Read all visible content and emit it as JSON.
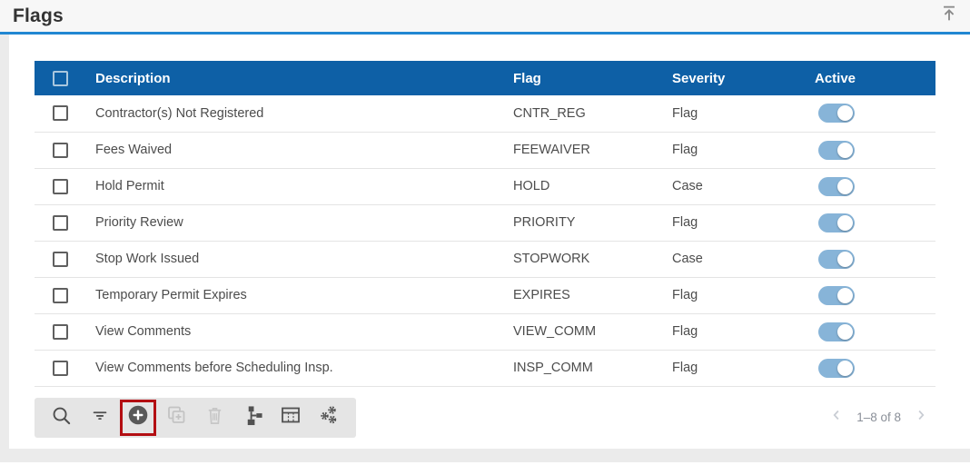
{
  "page": {
    "title": "Flags"
  },
  "table": {
    "headers": {
      "description": "Description",
      "flag": "Flag",
      "severity": "Severity",
      "active": "Active"
    },
    "rows": [
      {
        "description": "Contractor(s) Not Registered",
        "flag": "CNTR_REG",
        "severity": "Flag",
        "active": true
      },
      {
        "description": "Fees Waived",
        "flag": "FEEWAIVER",
        "severity": "Flag",
        "active": true
      },
      {
        "description": "Hold Permit",
        "flag": "HOLD",
        "severity": "Case",
        "active": true
      },
      {
        "description": "Priority Review",
        "flag": "PRIORITY",
        "severity": "Flag",
        "active": true
      },
      {
        "description": "Stop Work Issued",
        "flag": "STOPWORK",
        "severity": "Case",
        "active": true
      },
      {
        "description": "Temporary Permit Expires",
        "flag": "EXPIRES",
        "severity": "Flag",
        "active": true
      },
      {
        "description": "View Comments",
        "flag": "VIEW_COMM",
        "severity": "Flag",
        "active": true
      },
      {
        "description": "View Comments before Scheduling Insp.",
        "flag": "INSP_COMM",
        "severity": "Flag",
        "active": true
      }
    ]
  },
  "toolbar": {
    "icons": [
      {
        "name": "search-icon",
        "enabled": true,
        "highlighted": false
      },
      {
        "name": "filter-icon",
        "enabled": true,
        "highlighted": false
      },
      {
        "name": "add-icon",
        "enabled": true,
        "highlighted": true
      },
      {
        "name": "duplicate-icon",
        "enabled": false,
        "highlighted": false
      },
      {
        "name": "delete-icon",
        "enabled": false,
        "highlighted": false
      },
      {
        "name": "hierarchy-icon",
        "enabled": true,
        "highlighted": false
      },
      {
        "name": "table-view-icon",
        "enabled": true,
        "highlighted": false
      },
      {
        "name": "settings-gears-icon",
        "enabled": true,
        "highlighted": false
      }
    ]
  },
  "pagination": {
    "label": "1–8 of 8"
  },
  "colors": {
    "header_blue": "#0e60a6",
    "divider_blue": "#2187d2",
    "toggle_blue": "#87b4d8",
    "highlight_red": "#b30e12",
    "toolbar_gray": "#e5e5e5"
  }
}
